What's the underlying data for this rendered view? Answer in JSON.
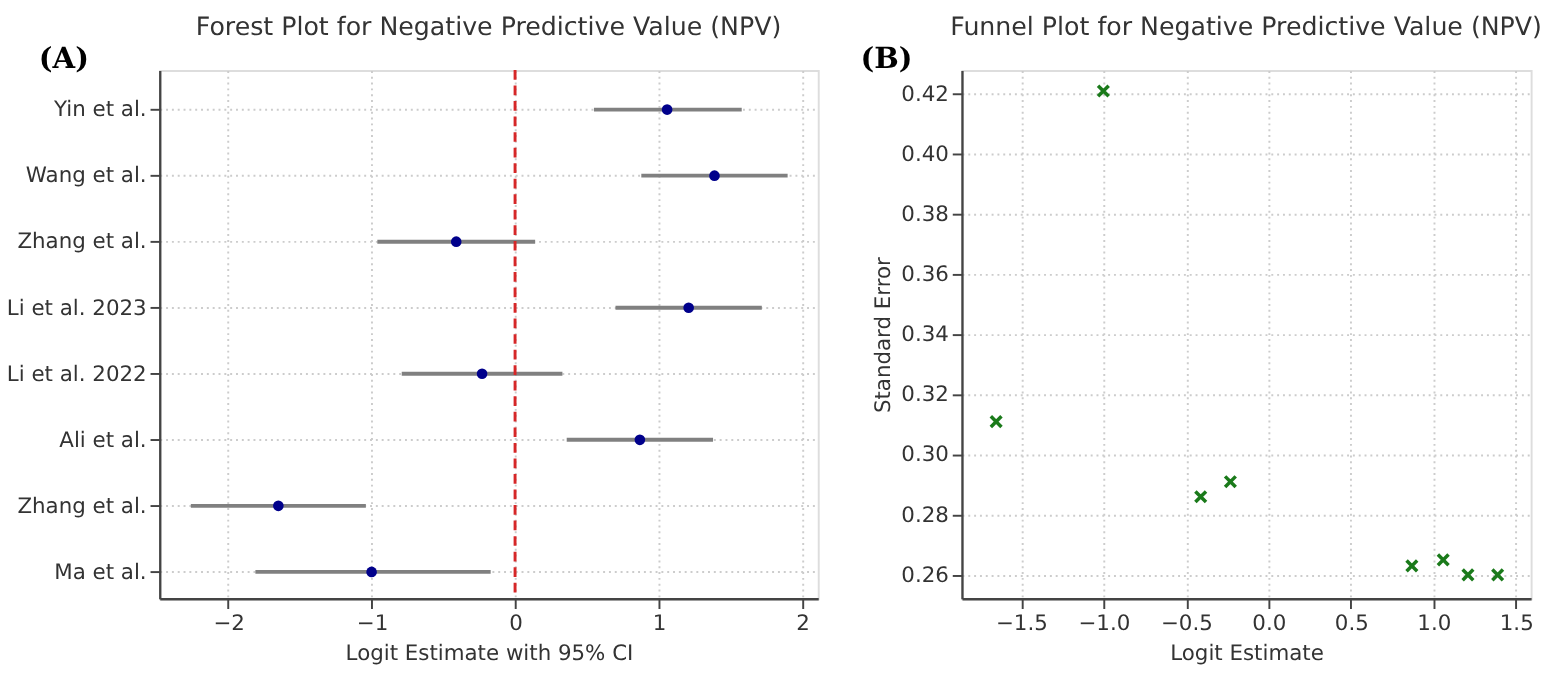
{
  "chart_data": [
    {
      "type": "scatter",
      "orientation": "horizontal",
      "title": "Forest Plot for Negative Predictive Value (NPV)",
      "xlabel": "Logit Estimate with 95% CI",
      "annotations": [
        "(A)"
      ],
      "categories": [
        "Yin et al.",
        "Wang et al.",
        "Zhang et al.",
        "Li et al. 2023",
        "Li et al. 2022",
        "Ali et al.",
        "Zhang et al.",
        "Ma et al."
      ],
      "series": [
        {
          "color": "#00008b",
          "values": [
            1.06,
            1.39,
            -0.41,
            1.21,
            -0.23,
            0.87,
            -1.65,
            -1.0
          ],
          "errors": [
            [
              0.55,
              1.58
            ],
            [
              0.88,
              1.9
            ],
            [
              -0.96,
              0.14
            ],
            [
              0.7,
              1.72
            ],
            [
              -0.79,
              0.33
            ],
            [
              0.36,
              1.38
            ],
            [
              -2.26,
              -1.04
            ],
            [
              -1.81,
              -0.17
            ]
          ]
        }
      ],
      "xlim": [
        -2.48,
        2.11
      ],
      "xticks": [
        {
          "value": -2,
          "label": "−2"
        },
        {
          "value": -1,
          "label": "−1"
        },
        0,
        1,
        2
      ],
      "ref_lines": [
        {
          "axis": "x",
          "value": 0,
          "color": "#d62728",
          "line_style": "dashed"
        }
      ],
      "marker": "circle",
      "grid": true
    },
    {
      "type": "scatter",
      "title": "Funnel Plot for Negative Predictive Value (NPV)",
      "xlabel": "Logit Estimate",
      "ylabel": "Standard Error",
      "annotations": [
        "(B)"
      ],
      "x": [
        1.06,
        1.39,
        -0.41,
        1.21,
        -0.23,
        0.87,
        -1.65,
        -1.0
      ],
      "series": [
        {
          "color": "#1a7a1a",
          "values": [
            0.265,
            0.26,
            0.286,
            0.26,
            0.291,
            0.263,
            0.311,
            0.421
          ]
        }
      ],
      "xlim": [
        -1.86,
        1.59
      ],
      "xticks": [
        {
          "value": -1.5,
          "label": "−1.5"
        },
        {
          "value": -1.0,
          "label": "−1.0"
        },
        {
          "value": -0.5,
          "label": "−0.5"
        },
        {
          "value": 0,
          "label": "0.0"
        },
        {
          "value": 0.5,
          "label": "0.5"
        },
        {
          "value": 1.0,
          "label": "1.0"
        },
        {
          "value": 1.5,
          "label": "1.5"
        }
      ],
      "ylim": [
        0.2522,
        0.428
      ],
      "yticks": [
        {
          "value": 0.26,
          "label": "0.26"
        },
        {
          "value": 0.28,
          "label": "0.28"
        },
        {
          "value": 0.3,
          "label": "0.30"
        },
        {
          "value": 0.32,
          "label": "0.32"
        },
        {
          "value": 0.34,
          "label": "0.34"
        },
        {
          "value": 0.36,
          "label": "0.36"
        },
        {
          "value": 0.38,
          "label": "0.38"
        },
        {
          "value": 0.4,
          "label": "0.40"
        },
        {
          "value": 0.42,
          "label": "0.42"
        }
      ],
      "marker": "cross",
      "grid": true
    }
  ]
}
